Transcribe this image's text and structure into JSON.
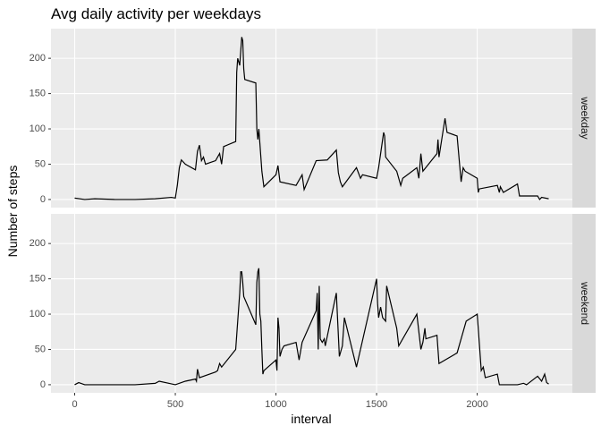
{
  "chart_data": {
    "type": "line",
    "title": "Avg daily activity per weekdays",
    "x_label": "interval",
    "y_label": "Number of steps",
    "xlim": [
      -117.75,
      2472.75
    ],
    "xticks": [
      0,
      500,
      1000,
      1500,
      2000
    ],
    "ylim": [
      -11.5,
      242
    ],
    "yticks": [
      0,
      50,
      100,
      150,
      200
    ],
    "grid": true,
    "series": [
      {
        "name": "weekday",
        "color": "#000000",
        "x": [
          0,
          50,
          100,
          200,
          300,
          400,
          480,
          500,
          510,
          520,
          530,
          550,
          600,
          610,
          620,
          630,
          640,
          650,
          700,
          720,
          730,
          740,
          800,
          805,
          810,
          820,
          830,
          835,
          840,
          845,
          900,
          905,
          910,
          915,
          920,
          930,
          940,
          1000,
          1010,
          1020,
          1100,
          1130,
          1140,
          1200,
          1255,
          1300,
          1310,
          1320,
          1330,
          1400,
          1420,
          1430,
          1500,
          1510,
          1535,
          1540,
          1545,
          1600,
          1620,
          1630,
          1700,
          1710,
          1720,
          1730,
          1800,
          1805,
          1810,
          1840,
          1850,
          1900,
          1920,
          1930,
          1940,
          2000,
          2005,
          2010,
          2100,
          2110,
          2115,
          2130,
          2200,
          2210,
          2300,
          2310,
          2320,
          2355
        ],
        "values": [
          2,
          0,
          1,
          0,
          0,
          1,
          3,
          2,
          20,
          45,
          56,
          50,
          42,
          68,
          77,
          55,
          60,
          50,
          55,
          65,
          50,
          75,
          82,
          180,
          200,
          190,
          230,
          225,
          185,
          170,
          165,
          100,
          85,
          100,
          80,
          40,
          18,
          35,
          48,
          25,
          20,
          35,
          14,
          55,
          56,
          70,
          38,
          25,
          18,
          45,
          30,
          35,
          30,
          45,
          95,
          90,
          60,
          40,
          20,
          30,
          45,
          30,
          65,
          40,
          65,
          85,
          60,
          115,
          95,
          90,
          25,
          45,
          40,
          30,
          10,
          15,
          20,
          10,
          18,
          10,
          22,
          5,
          5,
          0,
          3,
          1
        ]
      },
      {
        "name": "weekend",
        "color": "#000000",
        "x": [
          0,
          20,
          50,
          100,
          300,
          400,
          420,
          500,
          550,
          600,
          605,
          610,
          620,
          700,
          710,
          720,
          730,
          800,
          810,
          820,
          825,
          830,
          835,
          840,
          900,
          905,
          910,
          915,
          920,
          925,
          930,
          935,
          940,
          1000,
          1005,
          1010,
          1015,
          1020,
          1030,
          1040,
          1100,
          1115,
          1130,
          1200,
          1205,
          1210,
          1215,
          1220,
          1230,
          1240,
          1245,
          1300,
          1315,
          1330,
          1340,
          1400,
          1500,
          1505,
          1510,
          1520,
          1530,
          1545,
          1550,
          1600,
          1610,
          1700,
          1720,
          1730,
          1740,
          1745,
          1800,
          1810,
          1900,
          1945,
          2000,
          2010,
          2020,
          2030,
          2040,
          2100,
          2110,
          2200,
          2230,
          2245,
          2300,
          2320,
          2335,
          2345,
          2355
        ],
        "values": [
          0,
          3,
          0,
          0,
          0,
          2,
          5,
          0,
          5,
          8,
          5,
          22,
          10,
          18,
          20,
          30,
          25,
          50,
          90,
          130,
          160,
          160,
          145,
          125,
          85,
          145,
          160,
          165,
          100,
          90,
          50,
          15,
          20,
          35,
          20,
          95,
          80,
          40,
          50,
          55,
          60,
          35,
          60,
          105,
          130,
          50,
          140,
          65,
          60,
          65,
          55,
          130,
          40,
          55,
          95,
          25,
          150,
          115,
          95,
          110,
          95,
          90,
          140,
          80,
          55,
          100,
          50,
          60,
          80,
          65,
          70,
          30,
          45,
          90,
          100,
          60,
          20,
          25,
          10,
          15,
          0,
          0,
          2,
          0,
          12,
          5,
          15,
          3,
          1
        ]
      }
    ]
  }
}
